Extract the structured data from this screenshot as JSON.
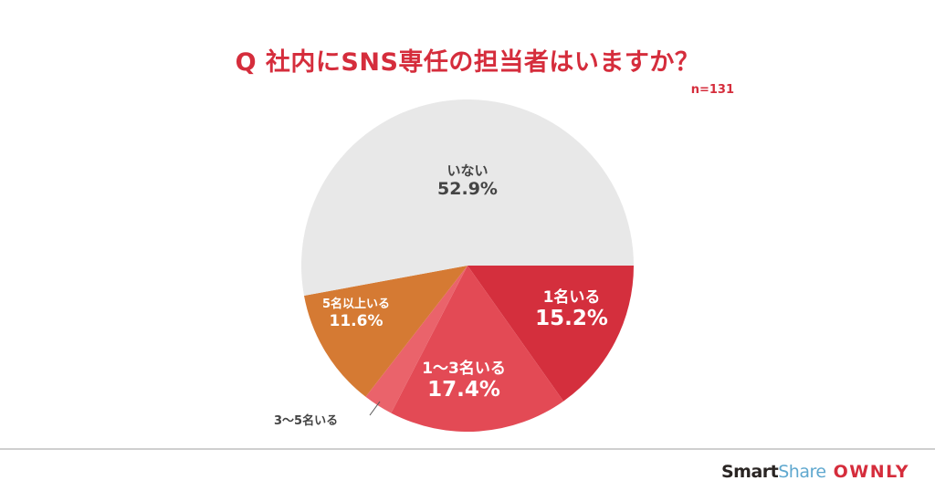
{
  "header": {
    "title": "Q 社内にSNS専任の担当者はいますか？",
    "sample_size": "n=131"
  },
  "colors": {
    "accent": "#d52d3c",
    "none": "#e8e8e8",
    "one": "#d42f3d",
    "one_to_three": "#e34a55",
    "three_to_five": "#ea636b",
    "five_plus": "#d57a33"
  },
  "labels": {
    "inai": {
      "name": "いない",
      "value": "52.9%"
    },
    "one": {
      "name": "1名いる",
      "value": "15.2%"
    },
    "one_to_three": {
      "name": "1〜3名いる",
      "value": "17.4%"
    },
    "three_to_five": {
      "name": "3〜5名いる"
    },
    "five_plus": {
      "name": "5名以上いる",
      "value": "11.6%"
    }
  },
  "footer": {
    "brand_smart": "Smart",
    "brand_share": "Share",
    "brand_ownly": "OWNLY"
  },
  "chart_data": {
    "type": "pie",
    "title": "Q 社内にSNS専任の担当者はいますか？",
    "subtitle": "n=131",
    "categories": [
      "1名いる",
      "1〜3名いる",
      "3〜5名いる",
      "5名以上いる",
      "いない"
    ],
    "values": [
      15.2,
      17.4,
      2.9,
      11.6,
      52.9
    ],
    "value_labels": [
      "15.2%",
      "17.4%",
      "",
      "11.6%",
      "52.9%"
    ],
    "colors": [
      "#d42f3d",
      "#e34a55",
      "#ea636b",
      "#d57a33",
      "#e8e8e8"
    ],
    "start_angle": "3 o'clock, clockwise",
    "legend": "none (direct labels)"
  }
}
